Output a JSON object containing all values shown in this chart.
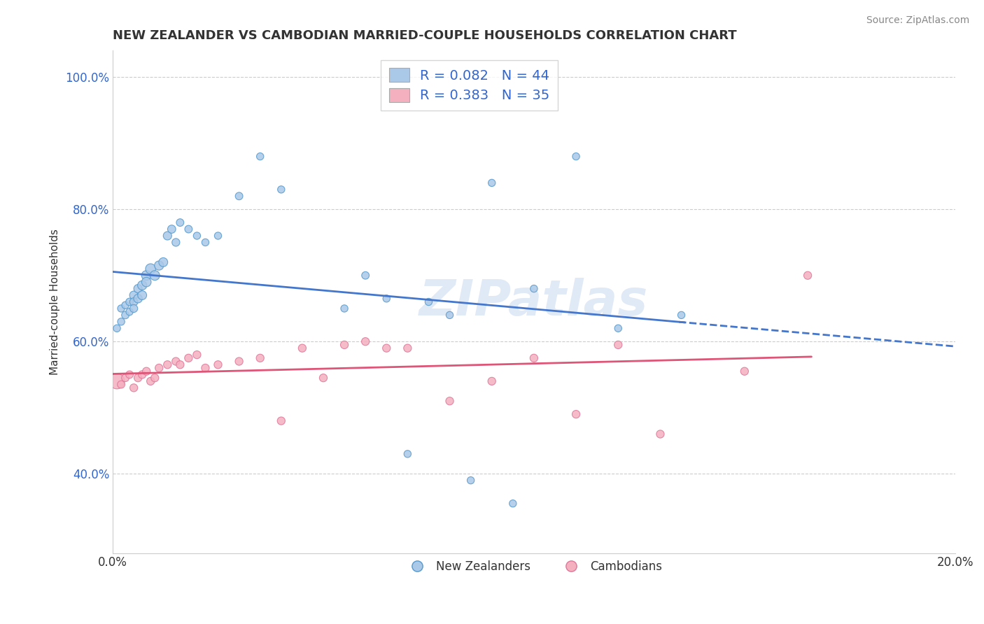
{
  "title": "NEW ZEALANDER VS CAMBODIAN MARRIED-COUPLE HOUSEHOLDS CORRELATION CHART",
  "source": "Source: ZipAtlas.com",
  "xlabel": "",
  "ylabel": "Married-couple Households",
  "xlim": [
    0.0,
    0.2
  ],
  "ylim": [
    0.28,
    1.04
  ],
  "xticks": [
    0.0,
    0.05,
    0.1,
    0.15,
    0.2
  ],
  "xtick_labels": [
    "0.0%",
    "",
    "",
    "",
    "20.0%"
  ],
  "yticks": [
    0.4,
    0.6,
    0.8,
    1.0
  ],
  "ytick_labels": [
    "40.0%",
    "60.0%",
    "80.0%",
    "100.0%"
  ],
  "grid_color": "#cccccc",
  "background_color": "#ffffff",
  "nz_color": "#aac8e8",
  "nz_edge_color": "#5599cc",
  "cam_color": "#f5b0c0",
  "cam_edge_color": "#dd7799",
  "nz_line_color": "#4477cc",
  "cam_line_color": "#dd5577",
  "nz_R": 0.082,
  "nz_N": 44,
  "cam_R": 0.383,
  "cam_N": 35,
  "nz_scatter_x": [
    0.001,
    0.002,
    0.002,
    0.003,
    0.003,
    0.004,
    0.004,
    0.005,
    0.005,
    0.005,
    0.006,
    0.006,
    0.007,
    0.007,
    0.008,
    0.008,
    0.009,
    0.01,
    0.011,
    0.012,
    0.013,
    0.014,
    0.015,
    0.016,
    0.018,
    0.02,
    0.022,
    0.025,
    0.03,
    0.035,
    0.04,
    0.055,
    0.06,
    0.065,
    0.07,
    0.075,
    0.08,
    0.085,
    0.09,
    0.095,
    0.1,
    0.11,
    0.12,
    0.135
  ],
  "nz_scatter_y": [
    0.62,
    0.63,
    0.65,
    0.64,
    0.655,
    0.66,
    0.645,
    0.67,
    0.66,
    0.65,
    0.665,
    0.68,
    0.685,
    0.67,
    0.7,
    0.69,
    0.71,
    0.7,
    0.715,
    0.72,
    0.76,
    0.77,
    0.75,
    0.78,
    0.77,
    0.76,
    0.75,
    0.76,
    0.82,
    0.88,
    0.83,
    0.65,
    0.7,
    0.665,
    0.43,
    0.66,
    0.64,
    0.39,
    0.84,
    0.355,
    0.68,
    0.88,
    0.62,
    0.64
  ],
  "nz_scatter_size": [
    55,
    55,
    55,
    60,
    55,
    60,
    55,
    75,
    70,
    65,
    80,
    75,
    90,
    85,
    100,
    95,
    110,
    100,
    90,
    85,
    75,
    70,
    65,
    60,
    60,
    55,
    55,
    55,
    60,
    55,
    55,
    55,
    60,
    55,
    55,
    55,
    55,
    55,
    55,
    55,
    55,
    55,
    55,
    55
  ],
  "cam_scatter_x": [
    0.001,
    0.002,
    0.003,
    0.004,
    0.005,
    0.006,
    0.007,
    0.008,
    0.009,
    0.01,
    0.011,
    0.013,
    0.015,
    0.016,
    0.018,
    0.02,
    0.022,
    0.025,
    0.03,
    0.035,
    0.04,
    0.045,
    0.05,
    0.055,
    0.06,
    0.065,
    0.07,
    0.08,
    0.09,
    0.1,
    0.11,
    0.12,
    0.13,
    0.15,
    0.165
  ],
  "cam_scatter_y": [
    0.54,
    0.535,
    0.545,
    0.55,
    0.53,
    0.545,
    0.55,
    0.555,
    0.54,
    0.545,
    0.56,
    0.565,
    0.57,
    0.565,
    0.575,
    0.58,
    0.56,
    0.565,
    0.57,
    0.575,
    0.48,
    0.59,
    0.545,
    0.595,
    0.6,
    0.59,
    0.59,
    0.51,
    0.54,
    0.575,
    0.49,
    0.595,
    0.46,
    0.555,
    0.7
  ],
  "cam_scatter_size": [
    250,
    60,
    60,
    60,
    65,
    65,
    65,
    65,
    65,
    65,
    65,
    65,
    65,
    65,
    65,
    65,
    65,
    65,
    65,
    65,
    65,
    65,
    65,
    65,
    65,
    65,
    65,
    65,
    65,
    65,
    65,
    65,
    65,
    65,
    65
  ],
  "watermark": "ZIPatlas",
  "legend_R_color": "#3366cc",
  "legend_fontsize": 14,
  "title_fontsize": 13,
  "axis_label_fontsize": 11
}
